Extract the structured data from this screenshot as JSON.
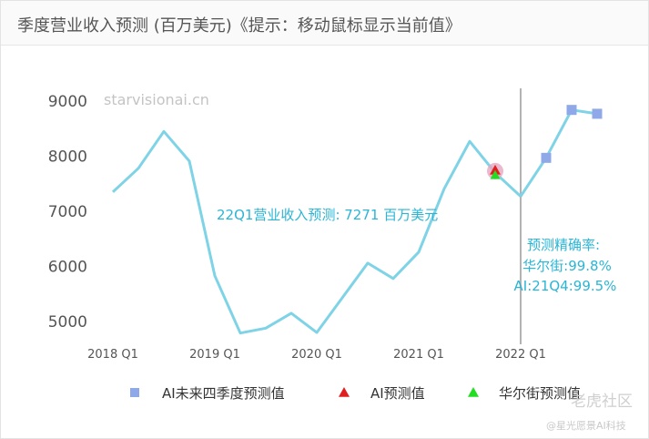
{
  "title": "季度营业收入预测 (百万美元)《提示：移动鼠标显示当前值》",
  "watermark": "starvisionai.cn",
  "annotation": "22Q1营业收入预测: 7271 百万美元",
  "accuracy": {
    "heading": "预测精确率:",
    "wallstreet": "华尔街:99.8%",
    "ai": "AI:21Q4:99.5%"
  },
  "footer": {
    "brand": "老虎社区",
    "credit": "@星光愿景AI科技"
  },
  "colors": {
    "line": "#7fd3e6",
    "future": "#8fa8e8",
    "ai_marker": "#e02020",
    "ws_marker": "#22dd22",
    "divider": "#b3b3b3",
    "annotation": "#2bb5d4"
  },
  "chart_data": {
    "type": "line",
    "ylim": [
      4700,
      9500
    ],
    "yticks": [
      "5000",
      "6000",
      "7000",
      "8000",
      "9000"
    ],
    "xticks": [
      "2018 Q1",
      "2019 Q1",
      "2020 Q1",
      "2021 Q1",
      "2022 Q1"
    ],
    "divider_at": "2022 Q1",
    "series": [
      {
        "values": [
          {
            "x": "2018 Q1",
            "y": 7350
          },
          {
            "x": "2018 Q2",
            "y": 7780
          },
          {
            "x": "2018 Q3",
            "y": 8450
          },
          {
            "x": "2018 Q4",
            "y": 7910
          },
          {
            "x": "2019 Q1",
            "y": 5830
          },
          {
            "x": "2019 Q2",
            "y": 4790
          },
          {
            "x": "2019 Q3",
            "y": 4880
          },
          {
            "x": "2019 Q4",
            "y": 5150
          },
          {
            "x": "2020 Q1",
            "y": 4800
          },
          {
            "x": "2020 Q2",
            "y": 5430
          },
          {
            "x": "2020 Q3",
            "y": 6060
          },
          {
            "x": "2020 Q4",
            "y": 5780
          },
          {
            "x": "2021 Q1",
            "y": 6260
          },
          {
            "x": "2021 Q2",
            "y": 7410
          },
          {
            "x": "2021 Q3",
            "y": 8270
          },
          {
            "x": "2021 Q4",
            "y": 7700
          },
          {
            "x": "2022 Q1",
            "y": 7271
          }
        ]
      },
      {
        "name": "AI未来四季度预测值",
        "marker": "square",
        "values": [
          {
            "x": "2022 Q1",
            "y": 7271
          },
          {
            "x": "2022 Q2",
            "y": 7970
          },
          {
            "x": "2022 Q3",
            "y": 8840
          },
          {
            "x": "2022 Q4",
            "y": 8770
          }
        ]
      },
      {
        "name": "AI预测值",
        "marker": "triangle",
        "values": [
          {
            "x": "2021 Q4",
            "y": 7730
          }
        ]
      },
      {
        "name": "华尔街预测值",
        "marker": "triangle",
        "values": [
          {
            "x": "2021 Q4",
            "y": 7690
          }
        ]
      }
    ]
  }
}
